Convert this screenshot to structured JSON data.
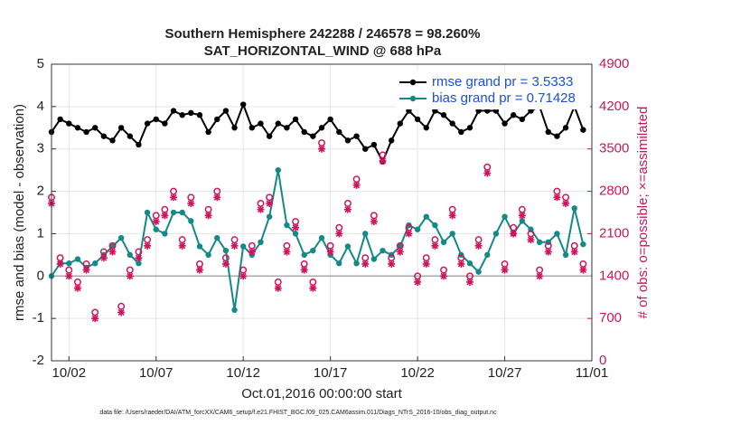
{
  "chart_data": {
    "type": "line",
    "title": "Southern Hemisphere 242288 / 246578 = 98.260%",
    "subtitle": "SAT_HORIZONTAL_WIND @ 688 hPa",
    "xlabel": "Oct.01,2016 00:00:00 start",
    "ylabel": "rmse and bias (model - observation)",
    "y2label": "# of obs: o=possible; ×=assimilated",
    "footnote": "data file: /Users/raeder/DAI/ATM_forcXX/CAM6_setup/f.e21.FHIST_BGC.f09_025.CAM6assim.011/Diags_NTrS_2016-10/obs_diag_output.nc",
    "x": [
      1,
      1.5,
      2,
      2.5,
      3,
      3.5,
      4,
      4.5,
      5,
      5.5,
      6,
      6.5,
      7,
      7.5,
      8,
      8.5,
      9,
      9.5,
      10,
      10.5,
      11,
      11.5,
      12,
      12.5,
      13,
      13.5,
      14,
      14.5,
      15,
      15.5,
      16,
      16.5,
      17,
      17.5,
      18,
      18.5,
      19,
      19.5,
      20,
      20.5,
      21,
      21.5,
      22,
      22.5,
      23,
      23.5,
      24,
      24.5,
      25,
      25.5,
      26,
      26.5,
      27,
      27.5,
      28,
      28.5,
      29,
      29.5,
      30,
      30.5,
      31,
      31.5
    ],
    "series": [
      {
        "name": "rmse grand pr = 3.5333",
        "color": "#000000",
        "marker": "dot",
        "values": [
          3.4,
          3.7,
          3.6,
          3.5,
          3.4,
          3.5,
          3.3,
          3.2,
          3.5,
          3.3,
          3.1,
          3.6,
          3.7,
          3.6,
          3.9,
          3.8,
          3.85,
          3.8,
          3.4,
          3.7,
          3.9,
          3.5,
          4.05,
          3.5,
          3.6,
          3.3,
          3.6,
          3.5,
          3.7,
          3.4,
          3.3,
          3.5,
          3.7,
          3.4,
          3.2,
          3.3,
          3.0,
          3.1,
          2.7,
          3.2,
          3.6,
          3.9,
          3.7,
          3.5,
          3.9,
          3.8,
          3.6,
          3.4,
          3.5,
          3.9,
          3.9,
          3.9,
          3.6,
          3.8,
          3.7,
          3.9,
          4.0,
          3.4,
          3.3,
          3.5,
          4.0,
          3.45
        ]
      },
      {
        "name": "bias grand pr = 0.71428",
        "color": "#138a87",
        "marker": "dot",
        "values": [
          0,
          0.3,
          0.3,
          0.4,
          0.2,
          0.3,
          0.5,
          0.7,
          0.9,
          0.5,
          0.3,
          1.5,
          1.1,
          1.0,
          1.5,
          1.5,
          1.3,
          0.7,
          0.5,
          0.9,
          0.6,
          -0.8,
          0.7,
          0.5,
          0.8,
          1.4,
          2.5,
          1.2,
          1.0,
          0.5,
          0.6,
          0.9,
          0.5,
          0.3,
          0.7,
          0.3,
          1.0,
          0.4,
          0.6,
          0.5,
          0.7,
          1.2,
          1.1,
          1.4,
          1.2,
          0.8,
          1.0,
          0.5,
          0.3,
          0.1,
          0.5,
          1.0,
          1.4,
          1.0,
          1.3,
          1.1,
          0.8,
          0.8,
          1.0,
          0.5,
          1.6,
          0.75
        ]
      },
      {
        "color": "#d0145c",
        "axis": "y2",
        "marker": "circle",
        "values": [
          2700,
          1700,
          1500,
          1300,
          1600,
          800,
          1800,
          1900,
          900,
          1500,
          1800,
          2000,
          2400,
          2500,
          2800,
          2000,
          2700,
          1600,
          2500,
          2800,
          1700,
          2000,
          1500,
          1900,
          2600,
          2700,
          1300,
          1900,
          2300,
          1600,
          1300,
          3600,
          1900,
          2200,
          2600,
          3000,
          1700,
          2400,
          3400,
          1700,
          1900,
          2200,
          1400,
          1700,
          2000,
          1500,
          2500,
          1700,
          1400,
          2000,
          3200,
          4300,
          1600,
          2200,
          2500,
          2100,
          1500,
          1900,
          2800,
          2700,
          1900,
          1600
        ]
      },
      {
        "color": "#d0145c",
        "axis": "y2",
        "marker": "asterisk",
        "values": [
          2600,
          1600,
          1400,
          1200,
          1500,
          700,
          1700,
          1800,
          800,
          1400,
          1700,
          1900,
          2300,
          2400,
          2700,
          1900,
          2600,
          1500,
          2400,
          2700,
          1600,
          1900,
          1400,
          1800,
          2500,
          2600,
          1200,
          1800,
          2200,
          1500,
          1200,
          3500,
          1800,
          2100,
          2500,
          2900,
          1600,
          2300,
          3300,
          1600,
          1800,
          2100,
          1300,
          1600,
          1900,
          1400,
          2400,
          1600,
          1300,
          1900,
          3100,
          4200,
          1500,
          2100,
          2400,
          2000,
          1400,
          1800,
          2700,
          2600,
          1800,
          1500
        ]
      }
    ],
    "xlim": [
      1,
      32
    ],
    "xticks": [
      {
        "value": 2,
        "label": "10/02"
      },
      {
        "value": 7,
        "label": "10/07"
      },
      {
        "value": 12,
        "label": "10/12"
      },
      {
        "value": 17,
        "label": "10/17"
      },
      {
        "value": 22,
        "label": "10/22"
      },
      {
        "value": 27,
        "label": "10/27"
      },
      {
        "value": 32,
        "label": "11/01"
      }
    ],
    "ylim": [
      -2,
      5
    ],
    "yticks": [
      -2,
      -1,
      0,
      1,
      2,
      3,
      4,
      5
    ],
    "y2lim": [
      0,
      4900
    ],
    "y2ticks": [
      0,
      700,
      1400,
      2100,
      2800,
      3500,
      4200,
      4900
    ],
    "grid": true,
    "legend": "northeast"
  }
}
